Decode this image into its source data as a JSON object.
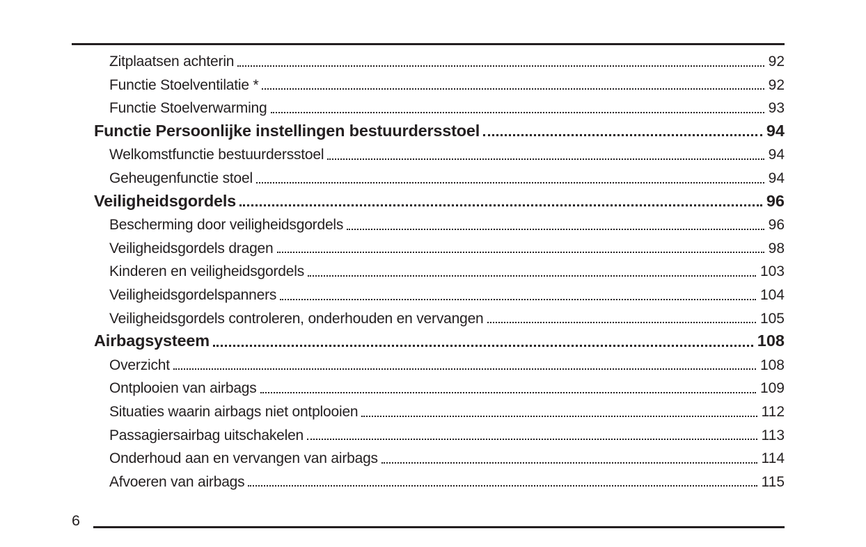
{
  "colors": {
    "ink": "#231f20",
    "paper": "#ffffff"
  },
  "footer": {
    "page_number": "6"
  },
  "toc": {
    "entries": [
      {
        "label": "Zitplaatsen achterin",
        "page": "92",
        "level": "sub"
      },
      {
        "label": "Functie Stoelventilatie *",
        "page": "92",
        "level": "sub"
      },
      {
        "label": "Functie Stoelverwarming",
        "page": "93",
        "level": "sub"
      },
      {
        "label": "Functie Persoonlijke instellingen bestuurdersstoel",
        "page": "94",
        "level": "section"
      },
      {
        "label": "Welkomstfunctie bestuurdersstoel",
        "page": "94",
        "level": "sub"
      },
      {
        "label": "Geheugenfunctie stoel",
        "page": "94",
        "level": "sub"
      },
      {
        "label": "Veiligheidsgordels",
        "page": "96",
        "level": "section"
      },
      {
        "label": "Bescherming door veiligheidsgordels",
        "page": "96",
        "level": "sub"
      },
      {
        "label": "Veiligheidsgordels dragen",
        "page": "98",
        "level": "sub"
      },
      {
        "label": "Kinderen en veiligheidsgordels",
        "page": "103",
        "level": "sub"
      },
      {
        "label": "Veiligheidsgordelspanners",
        "page": "104",
        "level": "sub"
      },
      {
        "label": "Veiligheidsgordels controleren, onderhouden en vervangen",
        "page": "105",
        "level": "sub"
      },
      {
        "label": "Airbagsysteem",
        "page": "108",
        "level": "section"
      },
      {
        "label": "Overzicht",
        "page": "108",
        "level": "sub"
      },
      {
        "label": "Ontplooien van airbags",
        "page": "109",
        "level": "sub"
      },
      {
        "label": "Situaties waarin airbags niet ontplooien",
        "page": "112",
        "level": "sub"
      },
      {
        "label": "Passagiersairbag uitschakelen",
        "page": "113",
        "level": "sub"
      },
      {
        "label": "Onderhoud aan en vervangen van airbags",
        "page": "114",
        "level": "sub"
      },
      {
        "label": "Afvoeren van airbags",
        "page": "115",
        "level": "sub"
      }
    ]
  }
}
